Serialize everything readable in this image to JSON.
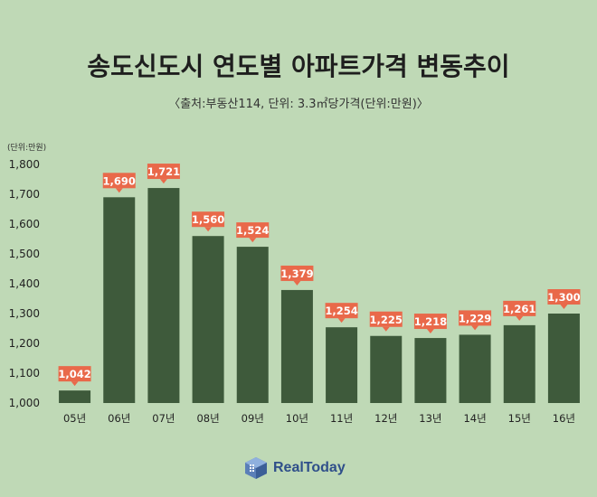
{
  "title": "송도신도시 연도별 아파트가격 변동추이",
  "subtitle": "〈출처:부동산114, 단위: 3.3㎡당가격(단위:만원)〉",
  "brand": "RealToday",
  "colors": {
    "background": "#bfd9b6",
    "bar": "#3e5a3b",
    "label_box": "#e9694a"
  },
  "chart_data": {
    "type": "bar",
    "unit_label": "(단위:만원)",
    "categories": [
      "05년",
      "06년",
      "07년",
      "08년",
      "09년",
      "10년",
      "11년",
      "12년",
      "13년",
      "14년",
      "15년",
      "16년"
    ],
    "values": [
      1042,
      1690,
      1721,
      1560,
      1524,
      1379,
      1254,
      1225,
      1218,
      1229,
      1261,
      1300
    ],
    "value_labels": [
      "1,042",
      "1,690",
      "1,721",
      "1,560",
      "1,524",
      "1,379",
      "1,254",
      "1,225",
      "1,218",
      "1,229",
      "1,261",
      "1,300"
    ],
    "yticks": [
      "1,000",
      "1,100",
      "1,200",
      "1,300",
      "1,400",
      "1,500",
      "1,600",
      "1,700",
      "1,800"
    ],
    "ylim": [
      1000,
      1800
    ],
    "grid": false,
    "legend": false
  }
}
